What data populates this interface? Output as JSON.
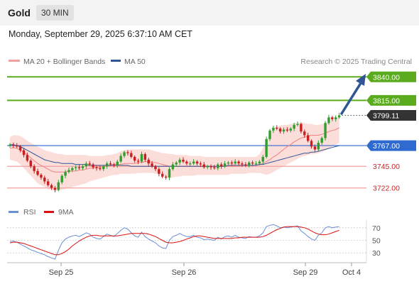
{
  "header": {
    "title": "Gold",
    "interval": "30 MIN"
  },
  "datetime": "Monday, September 29, 2025 6:37:10 AM CET",
  "legend": {
    "ma": "MA 20 + Bollinger Bands",
    "ma50": "MA 50",
    "credit": "Research © 2025 Trading Central"
  },
  "colors": {
    "band": "#fad8d4",
    "ma20": "#f08080",
    "ma50": "#2f5597",
    "target": "#5aab1e",
    "pivot": "#2f6ad0",
    "support": "#f4a0a0",
    "supportText": "#cc2222",
    "bull": "#2e9e2e",
    "bear": "#c81e1e",
    "rsi": "#6b8fd6",
    "rsiMa": "#dd1111"
  },
  "chart_data": [
    {
      "type": "candlestick",
      "title": "Gold",
      "xlabel": "",
      "ylabel": "",
      "x_ticks": [
        "Sep 25",
        "Sep 26",
        "Sep 29",
        "Oct 4"
      ],
      "ylim": [
        3712,
        3850
      ],
      "levels": [
        {
          "value": 3840.0,
          "label": "3840.00",
          "kind": "resistance"
        },
        {
          "value": 3815.0,
          "label": "3815.00",
          "kind": "resistance"
        },
        {
          "value": 3799.11,
          "label": "3799.11",
          "kind": "last"
        },
        {
          "value": 3767.0,
          "label": "3767.00",
          "kind": "pivot"
        },
        {
          "value": 3745.0,
          "label": "3745.00",
          "kind": "support"
        },
        {
          "value": 3722.0,
          "label": "3722.00",
          "kind": "support"
        }
      ],
      "closes": [
        3768,
        3767,
        3766,
        3762,
        3757,
        3751,
        3745,
        3740,
        3736,
        3733,
        3729,
        3725,
        3722,
        3720,
        3728,
        3735,
        3739,
        3741,
        3743,
        3744,
        3743,
        3745,
        3748,
        3747,
        3744,
        3743,
        3742,
        3745,
        3748,
        3747,
        3746,
        3750,
        3756,
        3760,
        3759,
        3755,
        3751,
        3750,
        3758,
        3752,
        3748,
        3745,
        3742,
        3737,
        3734,
        3733,
        3742,
        3747,
        3749,
        3752,
        3750,
        3748,
        3748,
        3750,
        3748,
        3747,
        3744,
        3745,
        3744,
        3743,
        3747,
        3745,
        3748,
        3749,
        3748,
        3750,
        3748,
        3747,
        3746,
        3749,
        3748,
        3748,
        3750,
        3755,
        3774,
        3783,
        3786,
        3785,
        3782,
        3784,
        3783,
        3785,
        3789,
        3790,
        3782,
        3778,
        3772,
        3766,
        3763,
        3770,
        3775,
        3791,
        3797,
        3795,
        3797,
        3799.11
      ],
      "ma20": [
        3764,
        3765,
        3764,
        3762,
        3760,
        3757,
        3754,
        3751,
        3748,
        3746,
        3744,
        3742,
        3740,
        3739,
        3739,
        3739,
        3739,
        3740,
        3740,
        3740,
        3741,
        3741,
        3742,
        3743,
        3743,
        3744,
        3744,
        3745,
        3745,
        3746,
        3747,
        3747,
        3747,
        3748,
        3748,
        3748,
        3748,
        3749,
        3749,
        3750,
        3750,
        3749,
        3749,
        3748,
        3747,
        3746,
        3745,
        3745,
        3745,
        3745,
        3745,
        3745,
        3745,
        3745,
        3745,
        3745,
        3745,
        3745,
        3745,
        3745,
        3745,
        3745,
        3745,
        3745,
        3745,
        3745,
        3745,
        3746,
        3746,
        3746,
        3746,
        3746,
        3747,
        3748,
        3750,
        3752,
        3755,
        3757,
        3760,
        3763,
        3766,
        3768,
        3771,
        3773,
        3775,
        3776,
        3777,
        3778,
        3778,
        3778,
        3779,
        3780,
        3782,
        3783,
        3784,
        3786
      ],
      "ma50": [
        3768,
        3768,
        3767,
        3766,
        3764,
        3762,
        3760,
        3758,
        3756,
        3754,
        3752,
        3751,
        3750,
        3749,
        3749,
        3748,
        3748,
        3748,
        3748,
        3747,
        3747,
        3747,
        3747,
        3746,
        3746,
        3746,
        3746,
        3746,
        3746,
        3746,
        3746,
        3746,
        3746,
        3746,
        3746,
        3745,
        3745,
        3745,
        3745,
        3745,
        3745,
        3745,
        3745,
        3745,
        3745,
        3745,
        3745,
        3745,
        3745,
        3745,
        3745,
        3745,
        3745,
        3745,
        3745,
        3745,
        3745,
        3745,
        3745,
        3745,
        3745,
        3745,
        3745,
        3746,
        3746,
        3746,
        3746,
        3746,
        3746,
        3746,
        3746,
        3746,
        3747,
        3747,
        3748,
        3749,
        3750,
        3751,
        3752,
        3753,
        3754,
        3755,
        3756,
        3757,
        3758,
        3759,
        3759,
        3760,
        3760,
        3761,
        3762,
        3763,
        3764,
        3765,
        3766,
        3767
      ],
      "band_upper": [
        3776,
        3778,
        3778,
        3777,
        3775,
        3772,
        3770,
        3768,
        3766,
        3764,
        3762,
        3761,
        3760,
        3759,
        3758,
        3758,
        3757,
        3757,
        3757,
        3757,
        3757,
        3757,
        3757,
        3756,
        3756,
        3756,
        3756,
        3756,
        3757,
        3757,
        3758,
        3759,
        3761,
        3762,
        3763,
        3763,
        3763,
        3763,
        3763,
        3763,
        3763,
        3762,
        3761,
        3760,
        3759,
        3759,
        3758,
        3758,
        3757,
        3757,
        3757,
        3757,
        3756,
        3756,
        3756,
        3756,
        3755,
        3755,
        3755,
        3755,
        3755,
        3755,
        3755,
        3755,
        3755,
        3755,
        3755,
        3755,
        3755,
        3755,
        3755,
        3755,
        3758,
        3764,
        3772,
        3780,
        3785,
        3787,
        3788,
        3789,
        3789,
        3790,
        3791,
        3791,
        3791,
        3791,
        3790,
        3790,
        3789,
        3789,
        3790,
        3791,
        3792,
        3794,
        3796,
        3797
      ],
      "band_lower": [
        3752,
        3751,
        3750,
        3747,
        3743,
        3739,
        3735,
        3731,
        3727,
        3725,
        3723,
        3721,
        3720,
        3719,
        3719,
        3720,
        3721,
        3722,
        3723,
        3724,
        3725,
        3726,
        3727,
        3729,
        3730,
        3731,
        3732,
        3733,
        3734,
        3735,
        3736,
        3736,
        3737,
        3737,
        3737,
        3737,
        3737,
        3738,
        3738,
        3738,
        3738,
        3738,
        3737,
        3737,
        3736,
        3734,
        3733,
        3733,
        3734,
        3734,
        3735,
        3735,
        3735,
        3735,
        3736,
        3736,
        3736,
        3736,
        3736,
        3736,
        3736,
        3736,
        3736,
        3736,
        3737,
        3737,
        3737,
        3737,
        3737,
        3738,
        3738,
        3738,
        3738,
        3737,
        3736,
        3737,
        3739,
        3741,
        3743,
        3745,
        3747,
        3749,
        3751,
        3753,
        3755,
        3756,
        3757,
        3758,
        3758,
        3759,
        3760,
        3762,
        3764,
        3766,
        3768,
        3770
      ]
    },
    {
      "type": "line",
      "title": "",
      "ylim": [
        20,
        80
      ],
      "y_ticks": [
        "70",
        "50",
        "30"
      ],
      "series": [
        {
          "name": "RSI",
          "values": [
            48,
            49,
            47,
            44,
            41,
            38,
            35,
            33,
            31,
            29,
            27,
            24,
            22,
            20,
            34,
            46,
            52,
            55,
            57,
            58,
            56,
            59,
            62,
            60,
            55,
            53,
            52,
            56,
            60,
            58,
            56,
            61,
            66,
            70,
            68,
            62,
            57,
            55,
            63,
            56,
            52,
            49,
            46,
            41,
            38,
            37,
            50,
            56,
            58,
            61,
            58,
            56,
            56,
            58,
            55,
            54,
            51,
            52,
            51,
            50,
            55,
            52,
            56,
            57,
            55,
            58,
            55,
            54,
            53,
            56,
            55,
            55,
            57,
            62,
            72,
            74,
            75,
            73,
            70,
            71,
            70,
            71,
            72,
            73,
            65,
            61,
            56,
            52,
            50,
            58,
            62,
            70,
            72,
            70,
            71,
            72
          ]
        },
        {
          "name": "9MA",
          "values": [
            46,
            47,
            47,
            46,
            45,
            43,
            41,
            39,
            37,
            35,
            33,
            31,
            29,
            27,
            27,
            29,
            32,
            36,
            41,
            45,
            49,
            52,
            55,
            57,
            58,
            58,
            57,
            57,
            57,
            57,
            57,
            57,
            58,
            59,
            60,
            61,
            61,
            61,
            61,
            61,
            60,
            58,
            56,
            53,
            50,
            47,
            46,
            46,
            47,
            48,
            50,
            52,
            54,
            56,
            57,
            57,
            56,
            55,
            54,
            53,
            53,
            53,
            53,
            53,
            53,
            54,
            54,
            55,
            55,
            55,
            55,
            55,
            55,
            56,
            58,
            61,
            64,
            67,
            69,
            71,
            72,
            72,
            72,
            72,
            71,
            70,
            68,
            65,
            62,
            60,
            59,
            59,
            60,
            62,
            64,
            66
          ]
        }
      ]
    }
  ]
}
